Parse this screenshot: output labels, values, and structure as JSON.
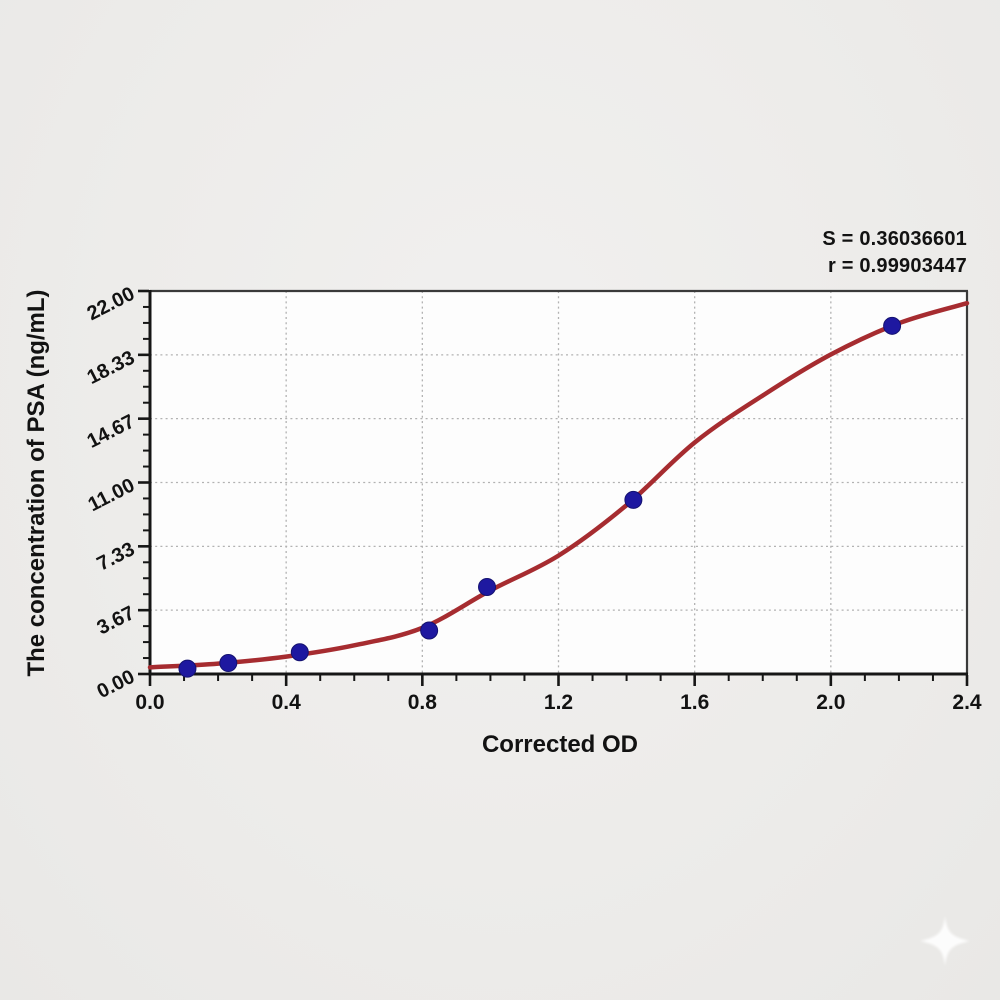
{
  "page": {
    "background_color": "#edecea"
  },
  "chart_data": {
    "type": "scatter",
    "title": "",
    "xlabel": "Corrected OD",
    "ylabel": "The concentration of PSA (ng/mL)",
    "xlim": [
      0.0,
      2.4
    ],
    "ylim": [
      0.0,
      22.0
    ],
    "x_ticks": [
      0.0,
      0.4,
      0.8,
      1.2,
      1.6,
      2.0,
      2.4
    ],
    "x_tick_labels": [
      "0.0",
      "0.4",
      "0.8",
      "1.2",
      "1.6",
      "2.0",
      "2.4"
    ],
    "x_minor_step": 0.1,
    "y_ticks": [
      0.0,
      3.667,
      7.333,
      11.0,
      14.667,
      18.333,
      22.0
    ],
    "y_tick_labels": [
      "0.00",
      "3.67",
      "7.33",
      "11.00",
      "14.67",
      "18.33",
      "22.00"
    ],
    "y_minor_step": 0.91667,
    "grid": "dotted at major ticks",
    "legend": "none",
    "annotations": {
      "s_line": "S = 0.36036601",
      "r_line": "r = 0.99903447"
    },
    "series": [
      {
        "name": "standard points",
        "type": "scatter",
        "marker": "circle",
        "color": "#1e18a0",
        "points": [
          {
            "x": 0.11,
            "y": 0.31
          },
          {
            "x": 0.23,
            "y": 0.63
          },
          {
            "x": 0.44,
            "y": 1.25
          },
          {
            "x": 0.82,
            "y": 2.5
          },
          {
            "x": 0.99,
            "y": 5.0
          },
          {
            "x": 1.42,
            "y": 10.0
          },
          {
            "x": 2.18,
            "y": 20.0
          }
        ]
      },
      {
        "name": "fitted curve",
        "type": "line",
        "color": "#a62c30",
        "samples": [
          [
            0.0,
            0.38
          ],
          [
            0.2,
            0.6
          ],
          [
            0.4,
            1.0
          ],
          [
            0.6,
            1.65
          ],
          [
            0.8,
            2.65
          ],
          [
            1.0,
            4.8
          ],
          [
            1.2,
            6.8
          ],
          [
            1.4,
            9.7
          ],
          [
            1.6,
            13.3
          ],
          [
            1.8,
            16.0
          ],
          [
            2.0,
            18.35
          ],
          [
            2.2,
            20.15
          ],
          [
            2.4,
            21.3
          ]
        ]
      }
    ],
    "colors": {
      "curve": "#a62c30",
      "marker": "#1e18a0",
      "grid": "#b2b2b2",
      "axis": "#161616",
      "border": "#3a3a3a",
      "text": "#121212",
      "plot_bg": "#fdfdfd"
    }
  },
  "watermark": {
    "icon": "sparkle-star",
    "color": "#ffffff"
  }
}
